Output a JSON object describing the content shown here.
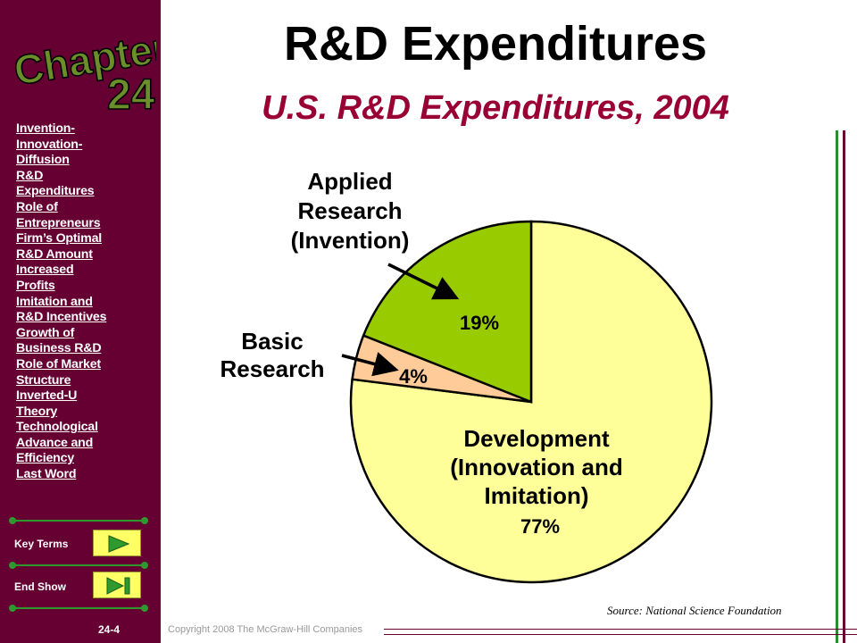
{
  "sidebar": {
    "chapter_word": "Chapter",
    "chapter_number": "24",
    "topics": [
      "Invention-\nInnovation-\nDiffusion",
      "R&D\nExpenditures",
      "Role of\nEntrepreneurs",
      "Firm’s Optimal\nR&D Amount",
      "Increased\nProfits",
      "Imitation and\nR&D Incentives",
      "Growth of\nBusiness R&D",
      "Role of Market\nStructure",
      "Inverted-U\nTheory",
      "Technological\nAdvance and\nEfficiency",
      "Last Word"
    ],
    "key_terms_label": "Key Terms",
    "end_show_label": "End Show",
    "slide_number": "24-4"
  },
  "slide_title": "R&D Expenditures",
  "copyright": "Copyright 2008 The McGraw-Hill Companies",
  "source_note": "Source: National Science Foundation",
  "colors": {
    "sidebar_bg": "#660033",
    "title_accent": "#990033",
    "accent_green": "#2e8b2e"
  },
  "chart_data": {
    "type": "pie",
    "title": "U.S. R&D Expenditures, 2004",
    "slices": [
      {
        "label": "Applied\nResearch\n(Invention)",
        "value": 19,
        "value_label": "19%",
        "color": "#99cc00"
      },
      {
        "label": "Basic\nResearch",
        "value": 4,
        "value_label": "4%",
        "color": "#ffcc99"
      },
      {
        "label": "Development\n(Innovation and\nImitation)",
        "value": 77,
        "value_label": "77%",
        "color": "#ffff99"
      }
    ]
  }
}
